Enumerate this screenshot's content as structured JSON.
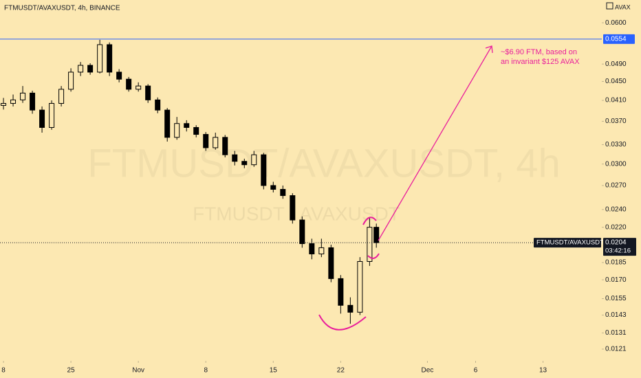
{
  "header": {
    "symbol": "FTMUSDT/AVAXUSDT, 4h, BINANCE",
    "currency": "AVAX"
  },
  "chart_data": {
    "type": "candlestick",
    "watermark": "FTMUSDT/AVAXUSDT, 4h",
    "watermark_sub": "FTMUSDT / AVAXUSDT",
    "x": [
      0,
      1,
      2,
      3,
      4,
      5,
      6,
      7,
      8,
      9,
      10,
      11,
      12,
      13,
      14,
      15,
      16,
      17,
      18,
      19,
      20,
      21,
      22,
      23,
      24,
      25,
      26,
      27,
      28,
      29,
      30,
      31,
      32,
      33,
      34,
      35,
      36,
      37,
      38,
      38.7
    ],
    "open": [
      0.04,
      0.0404,
      0.0411,
      0.0425,
      0.0391,
      0.0359,
      0.0404,
      0.0433,
      0.0471,
      0.0487,
      0.0471,
      0.0539,
      0.0471,
      0.0455,
      0.0433,
      0.044,
      0.0411,
      0.0391,
      0.0342,
      0.0366,
      0.0359,
      0.0347,
      0.0325,
      0.0342,
      0.0314,
      0.0304,
      0.0299,
      0.0314,
      0.027,
      0.0265,
      0.0257,
      0.0228,
      0.0203,
      0.0193,
      0.0199,
      0.0171,
      0.015,
      0.0145,
      0.0186,
      0.022
    ],
    "high": [
      0.0415,
      0.0422,
      0.044,
      0.043,
      0.0398,
      0.041,
      0.044,
      0.048,
      0.0495,
      0.0492,
      0.0552,
      0.0545,
      0.0478,
      0.046,
      0.0448,
      0.0444,
      0.0416,
      0.0395,
      0.0378,
      0.0372,
      0.0363,
      0.0351,
      0.035,
      0.0346,
      0.032,
      0.0308,
      0.032,
      0.0317,
      0.0275,
      0.027,
      0.026,
      0.0232,
      0.0208,
      0.0208,
      0.0202,
      0.0174,
      0.0156,
      0.019,
      0.023,
      0.0224
    ],
    "low": [
      0.0392,
      0.0398,
      0.0405,
      0.0384,
      0.035,
      0.0355,
      0.0398,
      0.0428,
      0.0462,
      0.0465,
      0.0468,
      0.0462,
      0.0448,
      0.0428,
      0.0428,
      0.0405,
      0.0385,
      0.0335,
      0.0338,
      0.0352,
      0.0342,
      0.032,
      0.0322,
      0.031,
      0.0298,
      0.0294,
      0.0296,
      0.0265,
      0.0261,
      0.0253,
      0.0224,
      0.0199,
      0.0188,
      0.019,
      0.0168,
      0.0144,
      0.0137,
      0.0143,
      0.0182,
      0.0199
    ],
    "close": [
      0.0404,
      0.0411,
      0.0425,
      0.0391,
      0.0359,
      0.0404,
      0.0433,
      0.0471,
      0.0487,
      0.0471,
      0.0539,
      0.0471,
      0.0455,
      0.0433,
      0.044,
      0.0411,
      0.0391,
      0.0342,
      0.0366,
      0.0359,
      0.0347,
      0.0325,
      0.0342,
      0.0314,
      0.0304,
      0.0299,
      0.0314,
      0.027,
      0.0265,
      0.0257,
      0.0228,
      0.0203,
      0.0193,
      0.0199,
      0.0171,
      0.015,
      0.0145,
      0.0186,
      0.022,
      0.0204
    ],
    "up_color": "#fce8b2",
    "down_color": "#000000",
    "xlim": [
      -0.36,
      62.1
    ],
    "xticks": [
      {
        "value": 0,
        "label": "8"
      },
      {
        "value": 7,
        "label": "25"
      },
      {
        "value": 14,
        "label": "Nov"
      },
      {
        "value": 21,
        "label": "8"
      },
      {
        "value": 28,
        "label": "15"
      },
      {
        "value": 35,
        "label": "22"
      },
      {
        "value": 44,
        "label": "Dec"
      },
      {
        "value": 49,
        "label": "6"
      },
      {
        "value": 56,
        "label": "13"
      }
    ],
    "ylim": [
      0.01154,
      0.0671
    ],
    "log_scale": true,
    "yticks": [
      {
        "value": 0.06,
        "label": "0.0600"
      },
      {
        "value": 0.049,
        "label": "0.0490"
      },
      {
        "value": 0.045,
        "label": "0.0450"
      },
      {
        "value": 0.041,
        "label": "0.0410"
      },
      {
        "value": 0.037,
        "label": "0.0370"
      },
      {
        "value": 0.033,
        "label": "0.0330"
      },
      {
        "value": 0.03,
        "label": "0.0300"
      },
      {
        "value": 0.027,
        "label": "0.0270"
      },
      {
        "value": 0.024,
        "label": "0.0240"
      },
      {
        "value": 0.022,
        "label": "0.0220"
      },
      {
        "value": 0.0185,
        "label": "0.0185"
      },
      {
        "value": 0.017,
        "label": "0.0170"
      },
      {
        "value": 0.0155,
        "label": "0.0155"
      },
      {
        "value": 0.0143,
        "label": "0.0143"
      },
      {
        "value": 0.0131,
        "label": "0.0131"
      },
      {
        "value": 0.0121,
        "label": "0.0121"
      }
    ],
    "horizontal_line": {
      "value": 0.0554,
      "label": "0.0554",
      "color": "#2962ff"
    },
    "last_price": {
      "value": 0.0204,
      "label": "0.0204",
      "symbol": "FTMUSDT/AVAXUSDT",
      "countdown": "03:42:16"
    },
    "annotation": [
      "~$6.90 FTM, based on",
      "an invariant $125 AVAX"
    ],
    "annotation_color": "#e91e9c"
  }
}
